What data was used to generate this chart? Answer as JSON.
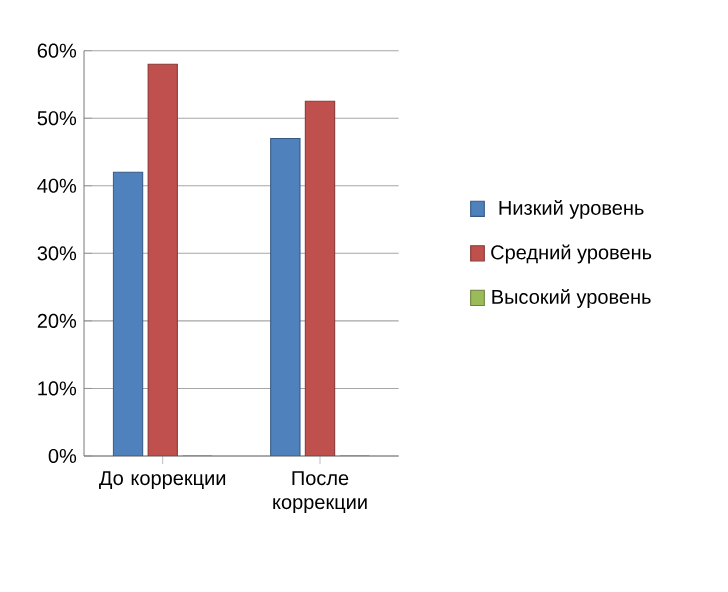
{
  "chart_data": {
    "type": "bar",
    "categories": [
      "До коррекции",
      "После коррекции"
    ],
    "series": [
      {
        "name": "Низкий уровень",
        "color": "#4f81bd",
        "values": [
          42,
          47
        ]
      },
      {
        "name": "Средний уровень",
        "color": "#c0504d",
        "values": [
          58,
          52.5
        ]
      },
      {
        "name": "Высокий уровень",
        "color": "#9bbb59",
        "values": [
          0,
          0
        ]
      }
    ],
    "ylim": [
      0,
      60
    ],
    "yticks": [
      {
        "value": 0,
        "label": "0%"
      },
      {
        "value": 10,
        "label": "10%"
      },
      {
        "value": 20,
        "label": "20%"
      },
      {
        "value": 30,
        "label": "30%"
      },
      {
        "value": 40,
        "label": "40%"
      },
      {
        "value": 50,
        "label": "50%"
      },
      {
        "value": 60,
        "label": "60%"
      }
    ],
    "grid": "y",
    "legend": "right"
  }
}
